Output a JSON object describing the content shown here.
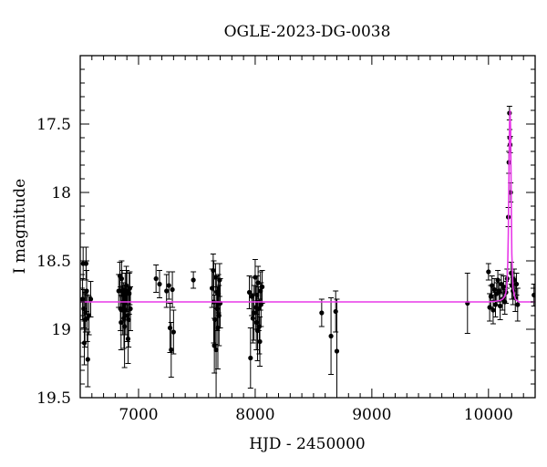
{
  "chart_data": {
    "type": "scatter",
    "title": "OGLE-2023-DG-0038",
    "xlabel": "HJD - 2450000",
    "ylabel": "I magnitude",
    "xlim": [
      6500,
      10400
    ],
    "ylim": [
      19.5,
      17.0
    ],
    "y_inverted": true,
    "grid": false,
    "x_ticks": [
      7000,
      8000,
      9000,
      10000
    ],
    "x_tick_labels": [
      "7000",
      "8000",
      "9000",
      "10000"
    ],
    "y_ticks": [
      17.5,
      18,
      18.5,
      19,
      19.5
    ],
    "y_tick_labels": [
      "17.5",
      "18",
      "18.5",
      "19",
      "19.5"
    ],
    "colors": {
      "points": "#000000",
      "model": "#e838e8"
    },
    "model": {
      "baseline": 18.8,
      "x": [
        6500,
        10000,
        10060,
        10100,
        10120,
        10140,
        10150,
        10160,
        10165,
        10170,
        10175,
        10180,
        10185,
        10190,
        10195,
        10200,
        10210,
        10230,
        10260,
        10400
      ],
      "y": [
        18.8,
        18.8,
        18.795,
        18.79,
        18.78,
        18.76,
        18.73,
        18.64,
        18.52,
        18.3,
        17.9,
        17.5,
        17.4,
        17.55,
        18.05,
        18.45,
        18.7,
        18.78,
        18.8,
        18.8
      ]
    },
    "series": [
      {
        "x": [
          6520,
          6525,
          6530,
          6535,
          6540,
          6545,
          6550,
          6555,
          6560,
          6565,
          6575,
          6590,
          6830,
          6840,
          6845,
          6850,
          6855,
          6860,
          6865,
          6870,
          6875,
          6880,
          6885,
          6890,
          6895,
          6900,
          6905,
          6910,
          6915,
          6920,
          6925,
          6930,
          7150,
          7180,
          7240,
          7260,
          7270,
          7280,
          7290,
          7300,
          7470,
          7630,
          7640,
          7645,
          7650,
          7655,
          7660,
          7665,
          7670,
          7675,
          7680,
          7685,
          7690,
          7695,
          7700,
          7950,
          7960,
          7970,
          7980,
          7990,
          8000,
          8005,
          8010,
          8015,
          8020,
          8025,
          8030,
          8035,
          8040,
          8045,
          8050,
          8060,
          8570,
          8650,
          8690,
          8700,
          9820,
          10000,
          10010,
          10020,
          10030,
          10040,
          10050,
          10060,
          10070,
          10080,
          10090,
          10100,
          10110,
          10120,
          10130,
          10140,
          10150,
          10160,
          10170,
          10175,
          10180,
          10182,
          10185,
          10190,
          10195,
          10200,
          10210,
          10220,
          10230,
          10240,
          10250,
          10390
        ],
        "y": [
          18.78,
          18.52,
          18.85,
          19.1,
          18.93,
          18.88,
          18.52,
          18.72,
          18.92,
          19.22,
          18.9,
          18.78,
          18.72,
          18.61,
          18.85,
          18.95,
          18.63,
          18.72,
          18.86,
          18.8,
          18.92,
          18.98,
          18.75,
          18.86,
          18.68,
          18.72,
          18.9,
          19.07,
          18.93,
          18.74,
          18.7,
          18.85,
          18.63,
          18.67,
          18.72,
          18.68,
          18.99,
          19.15,
          18.71,
          19.02,
          18.64,
          18.7,
          18.57,
          18.8,
          19.12,
          18.93,
          18.62,
          19.15,
          18.73,
          18.85,
          18.99,
          18.74,
          18.9,
          18.64,
          18.81,
          18.73,
          19.21,
          18.76,
          18.92,
          18.88,
          18.62,
          18.84,
          18.95,
          18.75,
          19.01,
          18.66,
          18.85,
          18.98,
          19.09,
          18.72,
          18.82,
          18.69,
          18.88,
          19.05,
          18.87,
          19.16,
          18.81,
          18.58,
          18.84,
          18.76,
          18.68,
          18.86,
          18.71,
          18.82,
          18.74,
          18.64,
          18.72,
          18.83,
          18.67,
          18.78,
          18.69,
          18.8,
          18.73,
          18.63,
          18.18,
          17.78,
          17.42,
          17.6,
          17.65,
          18.0,
          18.59,
          18.68,
          18.72,
          18.64,
          18.77,
          18.67,
          18.82,
          18.75
        ],
        "err": [
          0.15,
          0.12,
          0.14,
          0.16,
          0.2,
          0.14,
          0.12,
          0.15,
          0.17,
          0.2,
          0.14,
          0.13,
          0.12,
          0.1,
          0.16,
          0.2,
          0.13,
          0.15,
          0.18,
          0.14,
          0.22,
          0.3,
          0.16,
          0.18,
          0.14,
          0.15,
          0.19,
          0.18,
          0.2,
          0.15,
          0.12,
          0.16,
          0.1,
          0.1,
          0.12,
          0.1,
          0.18,
          0.2,
          0.13,
          0.16,
          0.06,
          0.14,
          0.12,
          0.3,
          0.2,
          0.18,
          0.1,
          0.35,
          0.12,
          0.16,
          0.3,
          0.14,
          0.22,
          0.12,
          0.18,
          0.12,
          0.22,
          0.14,
          0.18,
          0.2,
          0.13,
          0.16,
          0.2,
          0.14,
          0.22,
          0.12,
          0.16,
          0.2,
          0.18,
          0.14,
          0.16,
          0.12,
          0.1,
          0.28,
          0.15,
          0.38,
          0.22,
          0.06,
          0.1,
          0.08,
          0.07,
          0.1,
          0.08,
          0.09,
          0.08,
          0.07,
          0.08,
          0.1,
          0.07,
          0.08,
          0.08,
          0.09,
          0.08,
          0.07,
          0.07,
          0.08,
          0.05,
          0.06,
          0.06,
          0.07,
          0.08,
          0.1,
          0.1,
          0.08,
          0.1,
          0.08,
          0.12,
          0.08
        ]
      }
    ]
  }
}
